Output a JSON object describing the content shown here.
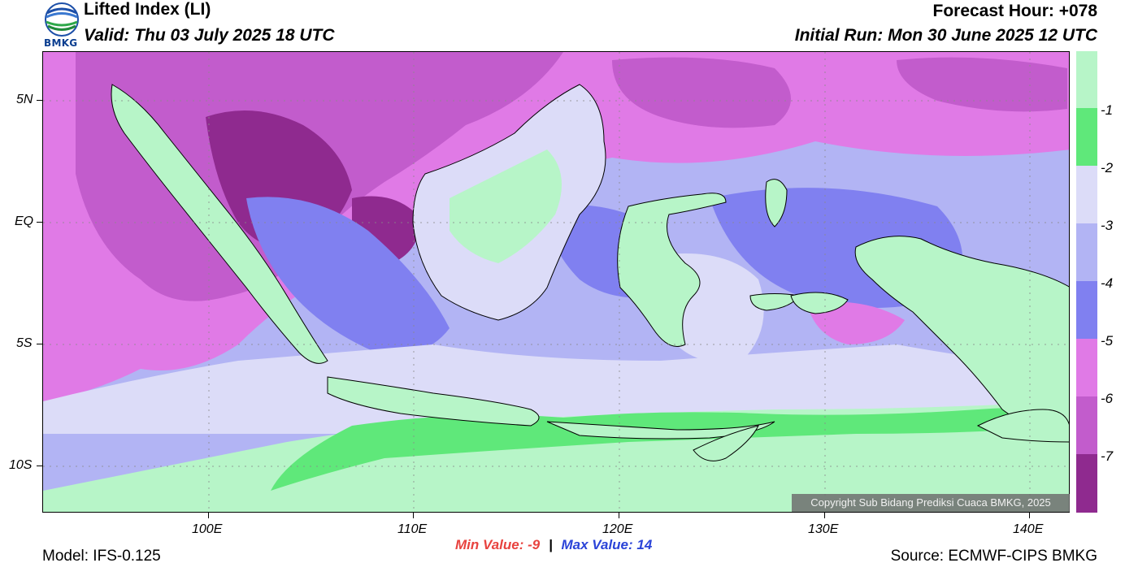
{
  "header": {
    "title": "Lifted Index (LI)",
    "valid": "Valid: Thu 03 July 2025 18 UTC",
    "forecast_hour": "Forecast Hour: +078",
    "initial_run": "Initial Run: Mon 30 June 2025 12 UTC"
  },
  "logo": {
    "text": "BMKG"
  },
  "map": {
    "lat_labels": [
      "5N",
      "EQ",
      "5S",
      "10S"
    ],
    "lon_labels": [
      "100E",
      "110E",
      "120E",
      "130E",
      "140E"
    ],
    "copyright": "Copyright Sub Bidang Prediksi Cuaca BMKG, 2025"
  },
  "legend": {
    "labels": [
      "-1",
      "-2",
      "-3",
      "-4",
      "-5",
      "-6",
      "-7"
    ],
    "colors": [
      "#b7f5c8",
      "#5fe87a",
      "#b7f5c8",
      "#dcdcf8",
      "#b2b4f4",
      "#8080f0",
      "#e07ae6",
      "#c25ccc",
      "#8f2a8f"
    ]
  },
  "stats": {
    "min_label": "Min Value:",
    "min_value": "-9",
    "separator": "|",
    "max_label": "Max Value:",
    "max_value": "14"
  },
  "footer": {
    "model": "Model: IFS-0.125",
    "source": "Source: ECMWF-CIPS BMKG"
  }
}
